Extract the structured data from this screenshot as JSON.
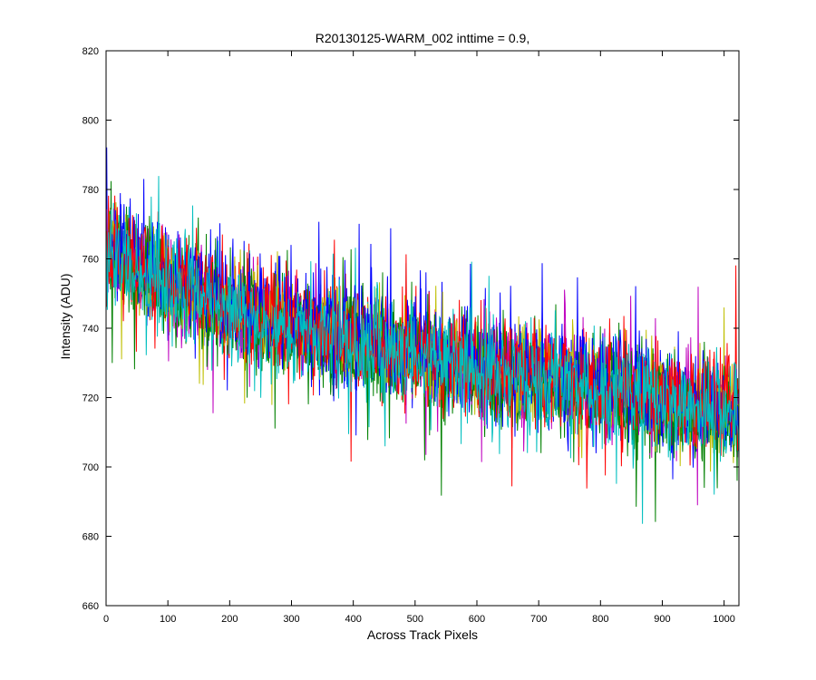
{
  "chart_data": {
    "type": "line",
    "title": "R20130125-WARM_002 inttime = 0.9,",
    "xlabel": "Across Track Pixels",
    "ylabel": "Intensity (ADU)",
    "xlim": [
      0,
      1024
    ],
    "ylim": [
      660,
      820
    ],
    "xticks": [
      0,
      100,
      200,
      300,
      400,
      500,
      600,
      700,
      800,
      900,
      1000
    ],
    "yticks": [
      660,
      680,
      700,
      720,
      740,
      760,
      780,
      800,
      820
    ],
    "grid": false,
    "legend": "none",
    "n_points": 1024,
    "series": [
      {
        "color": "#0000ff",
        "trend": [
          [
            0,
            763
          ],
          [
            100,
            753
          ],
          [
            200,
            746
          ],
          [
            300,
            741
          ],
          [
            400,
            737
          ],
          [
            500,
            733
          ],
          [
            600,
            729
          ],
          [
            700,
            726
          ],
          [
            800,
            723
          ],
          [
            900,
            720
          ],
          [
            1024,
            716
          ]
        ],
        "noise": 11
      },
      {
        "color": "#008000",
        "trend": [
          [
            0,
            764
          ],
          [
            100,
            753
          ],
          [
            200,
            745
          ],
          [
            300,
            740
          ],
          [
            400,
            736
          ],
          [
            500,
            732
          ],
          [
            600,
            728
          ],
          [
            700,
            725
          ],
          [
            800,
            721
          ],
          [
            900,
            718
          ],
          [
            1024,
            714
          ]
        ],
        "noise": 11
      },
      {
        "color": "#ff0000",
        "trend": [
          [
            0,
            765
          ],
          [
            100,
            755
          ],
          [
            200,
            747
          ],
          [
            300,
            742
          ],
          [
            400,
            738
          ],
          [
            500,
            734
          ],
          [
            600,
            730
          ],
          [
            700,
            727
          ],
          [
            800,
            724
          ],
          [
            900,
            721
          ],
          [
            1024,
            718
          ]
        ],
        "noise": 11
      },
      {
        "color": "#00bfbf",
        "trend": [
          [
            0,
            762
          ],
          [
            100,
            752
          ],
          [
            200,
            745
          ],
          [
            300,
            740
          ],
          [
            400,
            736
          ],
          [
            500,
            732
          ],
          [
            600,
            728
          ],
          [
            700,
            725
          ],
          [
            800,
            722
          ],
          [
            900,
            719
          ],
          [
            1024,
            715
          ]
        ],
        "noise": 11
      },
      {
        "color": "#bf00bf",
        "trend": [
          [
            0,
            764
          ],
          [
            100,
            754
          ],
          [
            200,
            746
          ],
          [
            300,
            741
          ],
          [
            400,
            737
          ],
          [
            500,
            733
          ],
          [
            600,
            729
          ],
          [
            700,
            726
          ],
          [
            800,
            723
          ],
          [
            900,
            720
          ],
          [
            1024,
            716
          ]
        ],
        "noise": 11
      },
      {
        "color": "#bfbf00",
        "trend": [
          [
            0,
            763
          ],
          [
            100,
            753
          ],
          [
            200,
            746
          ],
          [
            300,
            741
          ],
          [
            400,
            737
          ],
          [
            500,
            733
          ],
          [
            600,
            729
          ],
          [
            700,
            726
          ],
          [
            800,
            723
          ],
          [
            900,
            720
          ],
          [
            1024,
            716
          ]
        ],
        "noise": 11
      },
      {
        "color": "#008000",
        "trend": [
          [
            0,
            763
          ],
          [
            100,
            752
          ],
          [
            200,
            745
          ],
          [
            300,
            740
          ],
          [
            400,
            736
          ],
          [
            500,
            732
          ],
          [
            600,
            728
          ],
          [
            700,
            724
          ],
          [
            800,
            721
          ],
          [
            900,
            718
          ],
          [
            1024,
            714
          ]
        ],
        "noise": 11
      },
      {
        "color": "#0000ff",
        "trend": [
          [
            0,
            764
          ],
          [
            100,
            754
          ],
          [
            200,
            747
          ],
          [
            300,
            742
          ],
          [
            400,
            738
          ],
          [
            500,
            734
          ],
          [
            600,
            730
          ],
          [
            700,
            727
          ],
          [
            800,
            724
          ],
          [
            900,
            721
          ],
          [
            1024,
            717
          ]
        ],
        "noise": 11
      },
      {
        "color": "#ff0000",
        "trend": [
          [
            0,
            764
          ],
          [
            100,
            754
          ],
          [
            200,
            746
          ],
          [
            300,
            741
          ],
          [
            400,
            737
          ],
          [
            500,
            733
          ],
          [
            600,
            729
          ],
          [
            700,
            726
          ],
          [
            800,
            723
          ],
          [
            900,
            720
          ],
          [
            1024,
            717
          ]
        ],
        "noise": 11
      },
      {
        "color": "#00bfbf",
        "trend": [
          [
            0,
            762
          ],
          [
            100,
            752
          ],
          [
            200,
            745
          ],
          [
            300,
            740
          ],
          [
            400,
            736
          ],
          [
            500,
            732
          ],
          [
            600,
            728
          ],
          [
            700,
            725
          ],
          [
            800,
            722
          ],
          [
            900,
            719
          ],
          [
            1024,
            715
          ]
        ],
        "noise": 11
      }
    ]
  }
}
